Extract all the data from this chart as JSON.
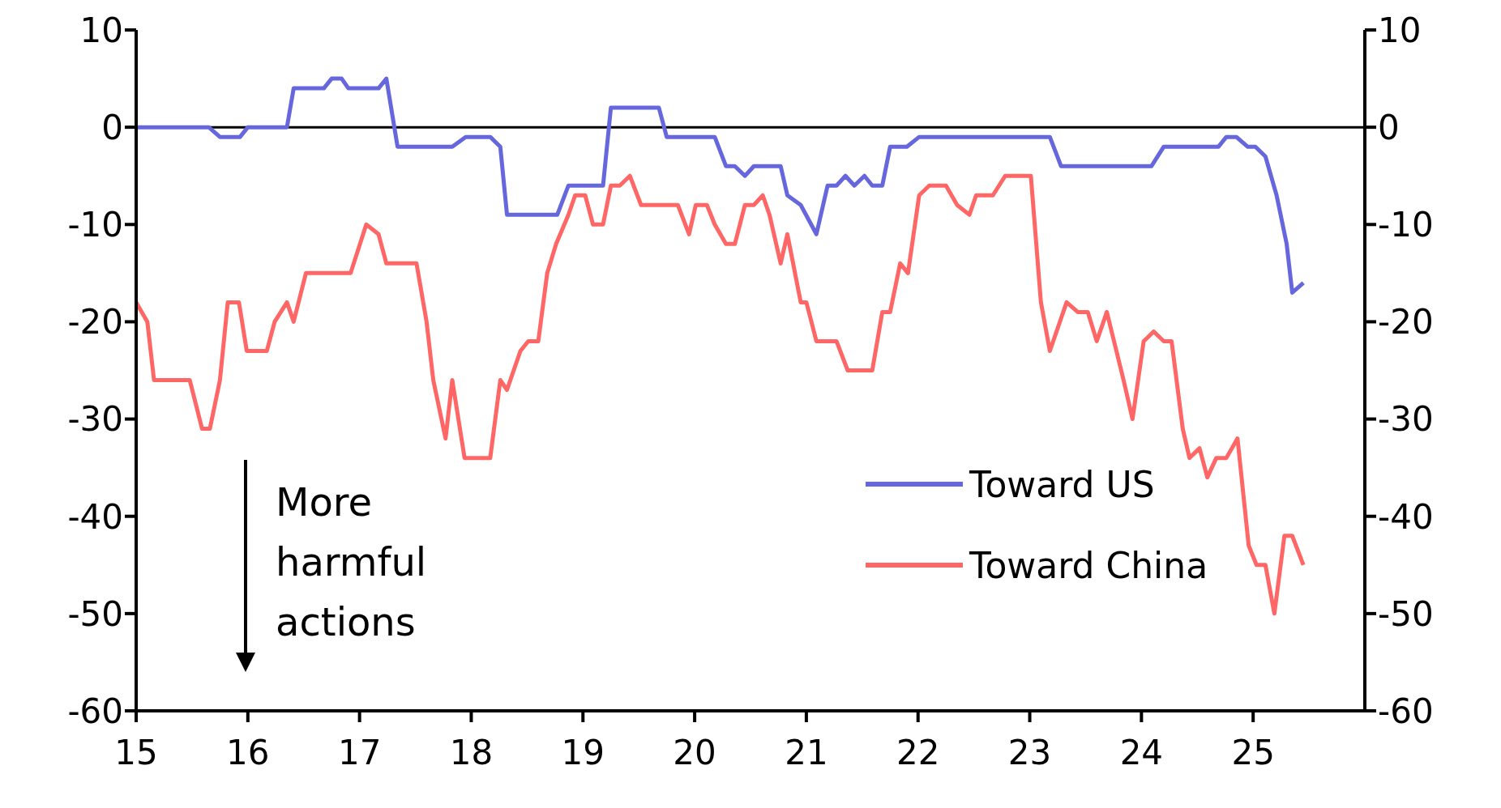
{
  "chart_data": {
    "type": "line",
    "xlim": [
      15,
      26
    ],
    "xticks": [
      15,
      16,
      17,
      18,
      19,
      20,
      21,
      22,
      23,
      24,
      25
    ],
    "ylim": [
      -60,
      10
    ],
    "yticks": [
      -60,
      -50,
      -40,
      -30,
      -20,
      -10,
      0,
      10
    ],
    "y2lim": [
      -60,
      10
    ],
    "y2ticks": [
      -60,
      -50,
      -40,
      -30,
      -20,
      -10,
      0,
      10
    ],
    "grid": false,
    "legend": "right",
    "marker": "none",
    "line_style": "solid",
    "ref_lines": [
      {
        "axis": "y",
        "value": 0,
        "color": "#000000"
      }
    ],
    "annotations": [
      "More harmful actions"
    ],
    "series": [
      {
        "name": "Toward US",
        "color": "#6666dd",
        "x": [
          15,
          15.65,
          15.75,
          15.93,
          16,
          16.35,
          16.41,
          16.68,
          16.75,
          16.84,
          16.9,
          17.17,
          17.24,
          17.34,
          17.83,
          17.95,
          18.17,
          18.26,
          18.32,
          18.77,
          18.87,
          19.18,
          19.25,
          19.68,
          19.75,
          20.18,
          20.28,
          20.36,
          20.45,
          20.53,
          20.77,
          20.83,
          20.95,
          21.09,
          21.19,
          21.27,
          21.35,
          21.43,
          21.52,
          21.59,
          21.68,
          21.75,
          21.9,
          22.01,
          23.18,
          23.28,
          24.09,
          24.2,
          24.69,
          24.76,
          24.85,
          24.95,
          25.02,
          25.11,
          25.21,
          25.3,
          25.35,
          25.45
        ],
        "values": [
          0,
          0,
          -1,
          -1,
          0,
          0,
          4,
          4,
          5,
          5,
          4,
          4,
          5,
          -2,
          -2,
          -1,
          -1,
          -2,
          -9,
          -9,
          -6,
          -6,
          2,
          2,
          -1,
          -1,
          -4,
          -4,
          -5,
          -4,
          -4,
          -7,
          -8,
          -11,
          -6,
          -6,
          -5,
          -6,
          -5,
          -6,
          -6,
          -2,
          -2,
          -1,
          -1,
          -4,
          -4,
          -2,
          -2,
          -1,
          -1,
          -2,
          -2,
          -3,
          -7,
          -12,
          -17,
          -16
        ]
      },
      {
        "name": "Toward China",
        "color": "#ff6666",
        "x": [
          15,
          15.1,
          15.16,
          15.48,
          15.59,
          15.66,
          15.75,
          15.82,
          15.92,
          15.99,
          16.17,
          16.24,
          16.35,
          16.41,
          16.52,
          16.92,
          17.06,
          17.17,
          17.24,
          17.51,
          17.6,
          17.66,
          17.77,
          17.83,
          17.94,
          18.17,
          18.26,
          18.32,
          18.44,
          18.51,
          18.6,
          18.68,
          18.76,
          18.87,
          18.93,
          19.02,
          19.09,
          19.18,
          19.25,
          19.33,
          19.42,
          19.52,
          19.85,
          19.95,
          20.01,
          20.11,
          20.18,
          20.28,
          20.36,
          20.45,
          20.53,
          20.61,
          20.67,
          20.77,
          20.83,
          20.95,
          21,
          21.09,
          21.27,
          21.37,
          21.59,
          21.68,
          21.75,
          21.84,
          21.91,
          22.01,
          22.1,
          22.25,
          22.35,
          22.46,
          22.52,
          22.67,
          22.78,
          23.01,
          23.1,
          23.18,
          23.33,
          23.43,
          23.52,
          23.6,
          23.69,
          23.84,
          23.92,
          24.02,
          24.11,
          24.2,
          24.27,
          24.37,
          24.43,
          24.52,
          24.59,
          24.67,
          24.76,
          24.86,
          24.96,
          25.03,
          25.11,
          25.19,
          25.28,
          25.35,
          25.45
        ],
        "values": [
          -18,
          -20,
          -26,
          -26,
          -31,
          -31,
          -26,
          -18,
          -18,
          -23,
          -23,
          -20,
          -18,
          -20,
          -15,
          -15,
          -10,
          -11,
          -14,
          -14,
          -20,
          -26,
          -32,
          -26,
          -34,
          -34,
          -26,
          -27,
          -23,
          -22,
          -22,
          -15,
          -12,
          -9,
          -7,
          -7,
          -10,
          -10,
          -6,
          -6,
          -5,
          -8,
          -8,
          -11,
          -8,
          -8,
          -10,
          -12,
          -12,
          -8,
          -8,
          -7,
          -9,
          -14,
          -11,
          -18,
          -18,
          -22,
          -22,
          -25,
          -25,
          -19,
          -19,
          -14,
          -15,
          -7,
          -6,
          -6,
          -8,
          -9,
          -7,
          -7,
          -5,
          -5,
          -18,
          -23,
          -18,
          -19,
          -19,
          -22,
          -19,
          -26,
          -30,
          -22,
          -21,
          -22,
          -22,
          -31,
          -34,
          -33,
          -36,
          -34,
          -34,
          -32,
          -43,
          -45,
          -45,
          -50,
          -42,
          -42,
          -45
        ]
      }
    ]
  }
}
